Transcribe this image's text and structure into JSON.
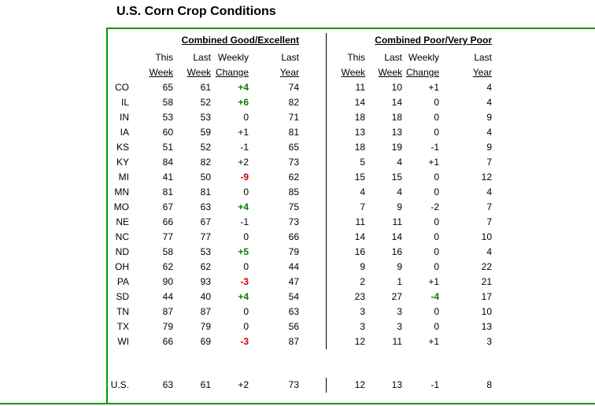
{
  "title": "U.S. Corn Crop Conditions",
  "colors": {
    "frame_green": "#009900",
    "positive_change": "#008000",
    "negative_change": "#cc0000",
    "divider": "#000000"
  },
  "col_headers": {
    "line1": [
      "This",
      "Last",
      "Weekly",
      "Last"
    ],
    "line2": [
      "Week",
      "Week",
      "Change",
      "Year"
    ]
  },
  "chart_data": {
    "type": "table",
    "title": "U.S. Corn Crop Conditions",
    "section_labels": [
      "Combined Good/Excellent",
      "Combined Poor/Very Poor"
    ],
    "columns": [
      "This Week",
      "Last Week",
      "Weekly Change",
      "Last Year"
    ],
    "rows": [
      {
        "state": "CO",
        "good": {
          "this": "65",
          "last": "61",
          "change": "+4",
          "change_color": "green",
          "year": "74"
        },
        "poor": {
          "this": "11",
          "last": "10",
          "change": "+1",
          "change_color": null,
          "year": "4"
        }
      },
      {
        "state": "IL",
        "good": {
          "this": "58",
          "last": "52",
          "change": "+6",
          "change_color": "green",
          "year": "82"
        },
        "poor": {
          "this": "14",
          "last": "14",
          "change": "0",
          "change_color": null,
          "year": "4"
        }
      },
      {
        "state": "IN",
        "good": {
          "this": "53",
          "last": "53",
          "change": "0",
          "change_color": null,
          "year": "71"
        },
        "poor": {
          "this": "18",
          "last": "18",
          "change": "0",
          "change_color": null,
          "year": "9"
        }
      },
      {
        "state": "IA",
        "good": {
          "this": "60",
          "last": "59",
          "change": "+1",
          "change_color": null,
          "year": "81"
        },
        "poor": {
          "this": "13",
          "last": "13",
          "change": "0",
          "change_color": null,
          "year": "4"
        }
      },
      {
        "state": "KS",
        "good": {
          "this": "51",
          "last": "52",
          "change": "-1",
          "change_color": null,
          "year": "65"
        },
        "poor": {
          "this": "18",
          "last": "19",
          "change": "-1",
          "change_color": null,
          "year": "9"
        }
      },
      {
        "state": "KY",
        "good": {
          "this": "84",
          "last": "82",
          "change": "+2",
          "change_color": null,
          "year": "73"
        },
        "poor": {
          "this": "5",
          "last": "4",
          "change": "+1",
          "change_color": null,
          "year": "7"
        }
      },
      {
        "state": "MI",
        "good": {
          "this": "41",
          "last": "50",
          "change": "-9",
          "change_color": "red",
          "year": "62"
        },
        "poor": {
          "this": "15",
          "last": "15",
          "change": "0",
          "change_color": null,
          "year": "12"
        }
      },
      {
        "state": "MN",
        "good": {
          "this": "81",
          "last": "81",
          "change": "0",
          "change_color": null,
          "year": "85"
        },
        "poor": {
          "this": "4",
          "last": "4",
          "change": "0",
          "change_color": null,
          "year": "4"
        }
      },
      {
        "state": "MO",
        "good": {
          "this": "67",
          "last": "63",
          "change": "+4",
          "change_color": "green",
          "year": "75"
        },
        "poor": {
          "this": "7",
          "last": "9",
          "change": "-2",
          "change_color": null,
          "year": "7"
        }
      },
      {
        "state": "NE",
        "good": {
          "this": "66",
          "last": "67",
          "change": "-1",
          "change_color": null,
          "year": "73"
        },
        "poor": {
          "this": "11",
          "last": "11",
          "change": "0",
          "change_color": null,
          "year": "7"
        }
      },
      {
        "state": "NC",
        "good": {
          "this": "77",
          "last": "77",
          "change": "0",
          "change_color": null,
          "year": "66"
        },
        "poor": {
          "this": "14",
          "last": "14",
          "change": "0",
          "change_color": null,
          "year": "10"
        }
      },
      {
        "state": "ND",
        "good": {
          "this": "58",
          "last": "53",
          "change": "+5",
          "change_color": "green",
          "year": "79"
        },
        "poor": {
          "this": "16",
          "last": "16",
          "change": "0",
          "change_color": null,
          "year": "4"
        }
      },
      {
        "state": "OH",
        "good": {
          "this": "62",
          "last": "62",
          "change": "0",
          "change_color": null,
          "year": "44"
        },
        "poor": {
          "this": "9",
          "last": "9",
          "change": "0",
          "change_color": null,
          "year": "22"
        }
      },
      {
        "state": "PA",
        "good": {
          "this": "90",
          "last": "93",
          "change": "-3",
          "change_color": "red",
          "year": "47"
        },
        "poor": {
          "this": "2",
          "last": "1",
          "change": "+1",
          "change_color": null,
          "year": "21"
        }
      },
      {
        "state": "SD",
        "good": {
          "this": "44",
          "last": "40",
          "change": "+4",
          "change_color": "green",
          "year": "54"
        },
        "poor": {
          "this": "23",
          "last": "27",
          "change": "-4",
          "change_color": "green",
          "year": "17"
        }
      },
      {
        "state": "TN",
        "good": {
          "this": "87",
          "last": "87",
          "change": "0",
          "change_color": null,
          "year": "63"
        },
        "poor": {
          "this": "3",
          "last": "3",
          "change": "0",
          "change_color": null,
          "year": "10"
        }
      },
      {
        "state": "TX",
        "good": {
          "this": "79",
          "last": "79",
          "change": "0",
          "change_color": null,
          "year": "56"
        },
        "poor": {
          "this": "3",
          "last": "3",
          "change": "0",
          "change_color": null,
          "year": "13"
        }
      },
      {
        "state": "WI",
        "good": {
          "this": "66",
          "last": "69",
          "change": "-3",
          "change_color": "red",
          "year": "87"
        },
        "poor": {
          "this": "12",
          "last": "11",
          "change": "+1",
          "change_color": null,
          "year": "3"
        }
      }
    ],
    "us_row": {
      "state": "U.S.",
      "good": {
        "this": "63",
        "last": "61",
        "change": "+2",
        "change_color": null,
        "year": "73"
      },
      "poor": {
        "this": "12",
        "last": "13",
        "change": "-1",
        "change_color": null,
        "year": "8"
      }
    }
  }
}
